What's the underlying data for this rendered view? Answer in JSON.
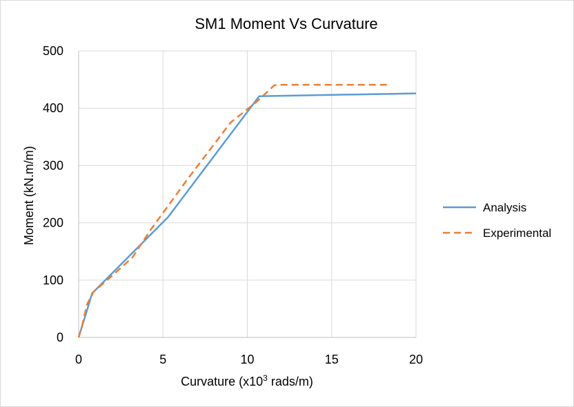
{
  "chart_data": {
    "type": "line",
    "title": "SM1 Moment Vs Curvature",
    "xlabel_main": "Curvature (x10",
    "xlabel_sup": "3",
    "xlabel_tail": " rads/m)",
    "ylabel": "Moment (kN.m/m)",
    "xlim": [
      0,
      20
    ],
    "ylim": [
      0,
      500
    ],
    "xticks": [
      0,
      5,
      10,
      15,
      20
    ],
    "yticks": [
      0,
      100,
      200,
      300,
      400,
      500
    ],
    "grid": true,
    "legend_position": "right",
    "series": [
      {
        "name": "Analysis",
        "color": "#5b9bd5",
        "dash": "solid",
        "x": [
          0,
          0.8,
          5.3,
          10.7,
          20
        ],
        "y": [
          0,
          77,
          210,
          421,
          426
        ]
      },
      {
        "name": "Experimental",
        "color": "#ed7d31",
        "dash": "dashed",
        "x": [
          0,
          0.2,
          0.5,
          0.9,
          2.0,
          3.2,
          4.2,
          6.5,
          9.0,
          10.5,
          11.6,
          12.0,
          18.5
        ],
        "y": [
          0,
          20,
          58,
          80,
          108,
          140,
          185,
          278,
          375,
          410,
          440,
          441,
          441
        ]
      }
    ]
  }
}
